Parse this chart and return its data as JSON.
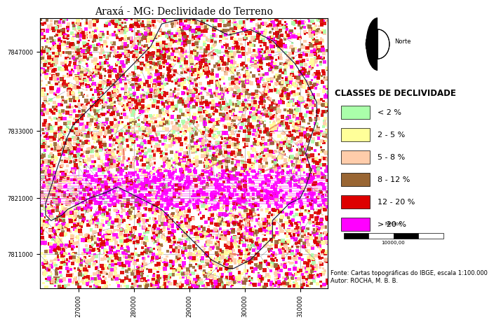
{
  "title": "Araxá - MG: Declividade do Terreno",
  "title_fontsize": 10,
  "legend_title": "CLASSES DE DECLIVIDADE",
  "legend_title_fontsize": 8.5,
  "legend_fontsize": 8,
  "classes": [
    {
      "label": "< 2 %",
      "color": "#aaffaa"
    },
    {
      "label": "2 - 5 %",
      "color": "#ffff99"
    },
    {
      "label": "5 - 8 %",
      "color": "#ffccaa"
    },
    {
      "label": "8 - 12 %",
      "color": "#996633"
    },
    {
      "label": "12 - 20 %",
      "color": "#dd0000"
    },
    {
      "label": "> 20 %",
      "color": "#ff00ff"
    }
  ],
  "ytick_labels": [
    "7847000",
    "7833000",
    "7821000",
    "7811000"
  ],
  "ytick_pos": [
    7847000,
    7833000,
    7821000,
    7811000
  ],
  "xtick_labels": [
    "270000",
    "280000",
    "290000",
    "300000",
    "310000"
  ],
  "xtick_pos": [
    270000,
    280000,
    290000,
    300000,
    310000
  ],
  "xlim": [
    263000,
    315000
  ],
  "ylim": [
    7805000,
    7853000
  ],
  "scale_label": "Metros",
  "scale_value": "10000,00",
  "source_text": "Fonte: Cartas topográficas do IBGE, escala 1:100.000\nAutor: ROCHA, M. B. B.",
  "source_fontsize": 6,
  "north_label": "Norte",
  "background_color": "#ffffff",
  "map_bg_color": "#ffffff",
  "map_border_color": "#000000",
  "grid_color": "#aaaaaa",
  "tick_fontsize": 6
}
